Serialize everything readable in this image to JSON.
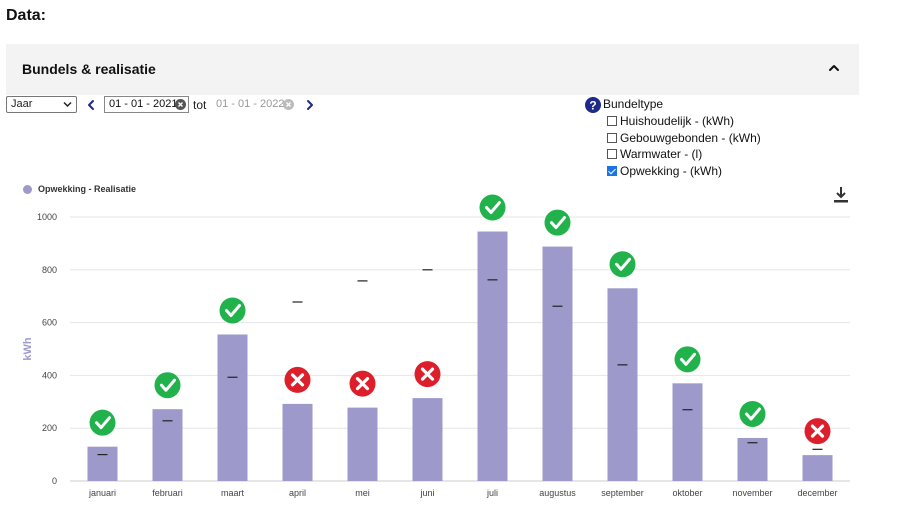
{
  "page": {
    "title": "Data:"
  },
  "panel": {
    "title": "Bundels & realisatie"
  },
  "controls": {
    "period": "Jaar",
    "date_from": "01 - 01 - 2021",
    "tot_label": "tot",
    "date_to": "01 - 01 - 2022"
  },
  "bundeltype": {
    "title": "Bundeltype",
    "items": [
      {
        "label": "Huishoudelijk - (kWh)",
        "checked": false
      },
      {
        "label": "Gebouwgebonden - (kWh)",
        "checked": false
      },
      {
        "label": "Warmwater - (l)",
        "checked": false
      },
      {
        "label": "Opwekking - (kWh)",
        "checked": true
      }
    ]
  },
  "colors": {
    "bar": "#9e99cb",
    "ok": "#22b24c",
    "fail": "#dd1f2c",
    "navy": "#1e2a8a"
  },
  "chart_data": {
    "type": "bar",
    "legend": "Opwekking - Realisatie",
    "ylabel": "kWh",
    "ylim": [
      0,
      1000
    ],
    "yticks": [
      0,
      200,
      400,
      600,
      800,
      1000
    ],
    "categories": [
      "januari",
      "februari",
      "maart",
      "april",
      "mei",
      "juni",
      "juli",
      "augustus",
      "september",
      "oktober",
      "november",
      "december"
    ],
    "values": [
      130,
      272,
      555,
      292,
      278,
      314,
      945,
      888,
      730,
      370,
      163,
      98
    ],
    "targets": [
      100,
      228,
      393,
      678,
      758,
      800,
      762,
      662,
      440,
      270,
      145,
      120
    ],
    "status": [
      "ok",
      "ok",
      "ok",
      "fail",
      "fail",
      "fail",
      "ok",
      "ok",
      "ok",
      "ok",
      "ok",
      "fail"
    ]
  }
}
